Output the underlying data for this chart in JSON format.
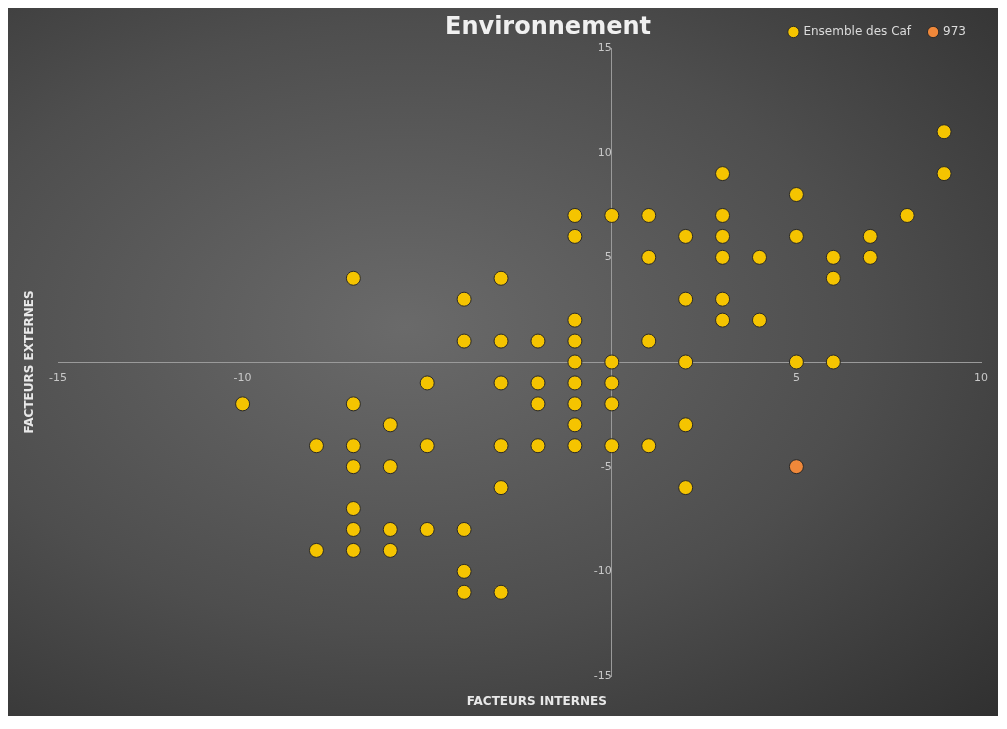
{
  "chart_data": {
    "type": "scatter",
    "title": "Environnement",
    "xlabel": "FACTEURS INTERNES",
    "ylabel": "FACTEURS EXTERNES",
    "xlim": [
      -15,
      10
    ],
    "ylim": [
      -15,
      15
    ],
    "xticks": [
      -15,
      -10,
      5,
      10
    ],
    "yticks": [
      -15,
      -10,
      -5,
      0,
      5,
      10,
      15
    ],
    "grid": false,
    "legend": "top right",
    "marker": "circle",
    "series": [
      {
        "name": "Ensemble des Caf",
        "color": "#f5c400",
        "x": [
          -7,
          -3,
          -4,
          -1,
          -4,
          -3,
          -2,
          -1,
          -1,
          0,
          -5,
          -3,
          -2,
          -1,
          0,
          -10,
          -7,
          -2,
          -1,
          0,
          -6,
          -1,
          -8,
          -7,
          -5,
          -3,
          -2,
          -1,
          0,
          -7,
          -6,
          -3,
          -7,
          -7,
          -6,
          -5,
          -4,
          -8,
          -7,
          -6,
          -4,
          -4,
          -3,
          2,
          5,
          6,
          2,
          1,
          2,
          9,
          9,
          3,
          5,
          -1,
          0,
          1,
          3,
          8,
          -1,
          2,
          3,
          5,
          7,
          1,
          3,
          4,
          6,
          7,
          6,
          2,
          3,
          3,
          4,
          1
        ],
        "values": [
          4,
          4,
          3,
          2,
          1,
          1,
          1,
          1,
          0,
          0,
          -1,
          -1,
          -1,
          -1,
          -1,
          -2,
          -2,
          -2,
          -2,
          -2,
          -3,
          -3,
          -4,
          -4,
          -4,
          -4,
          -4,
          -4,
          -4,
          -5,
          -5,
          -6,
          -7,
          -8,
          -8,
          -8,
          -8,
          -9,
          -9,
          -9,
          -10,
          -11,
          -11,
          0,
          0,
          0,
          -3,
          -4,
          -6,
          11,
          9,
          9,
          8,
          7,
          7,
          7,
          7,
          7,
          6,
          6,
          6,
          6,
          6,
          5,
          5,
          5,
          5,
          5,
          4,
          3,
          3,
          2,
          2,
          1
        ]
      },
      {
        "name": "973",
        "color": "#f0883a",
        "x": [
          5
        ],
        "values": [
          -5
        ]
      }
    ]
  }
}
